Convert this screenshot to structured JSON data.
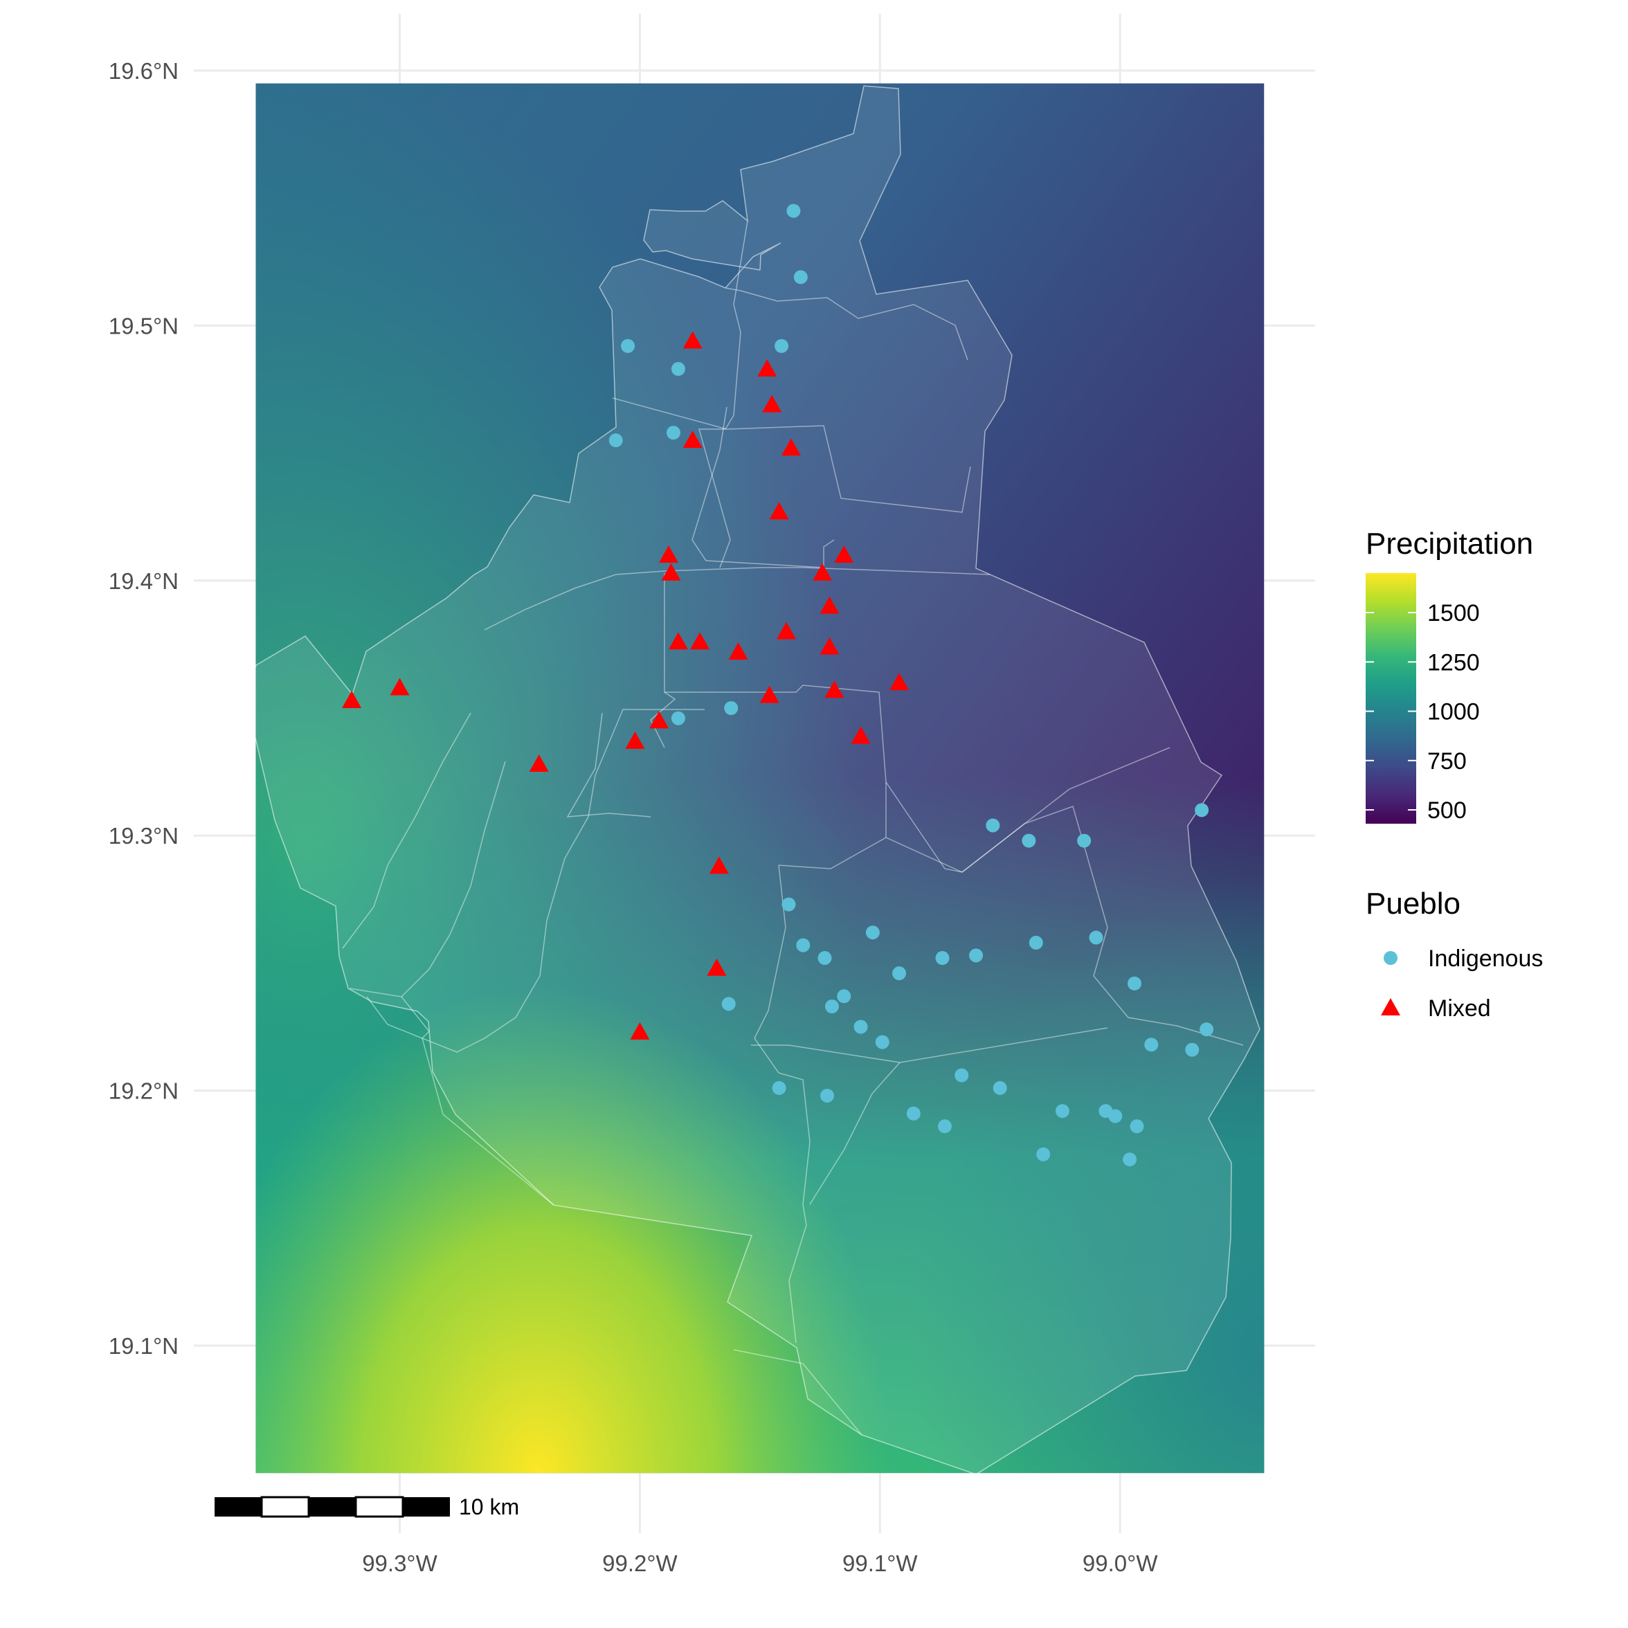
{
  "map": {
    "lat_ticks": [
      {
        "value": 19.6,
        "label": "19.6°N"
      },
      {
        "value": 19.5,
        "label": "19.5°N"
      },
      {
        "value": 19.4,
        "label": "19.4°N"
      },
      {
        "value": 19.3,
        "label": "19.3°N"
      },
      {
        "value": 19.2,
        "label": "19.2°N"
      },
      {
        "value": 19.1,
        "label": "19.1°N"
      }
    ],
    "lon_ticks": [
      {
        "value": -99.3,
        "label": "99.3°W"
      },
      {
        "value": -99.2,
        "label": "99.2°W"
      },
      {
        "value": -99.1,
        "label": "99.1°W"
      },
      {
        "value": -99.0,
        "label": "99.0°W"
      }
    ],
    "scale_bar_label": "10 km",
    "colors": {
      "indigenous": "#5bc0d8",
      "mixed": "#ff0000",
      "grid": "#ebebeb",
      "boundary": "#ffffff"
    }
  },
  "legend": {
    "precipitation": {
      "title": "Precipitation",
      "range": [
        430,
        1700
      ],
      "ticks": [
        1500,
        1250,
        1000,
        750,
        500
      ],
      "tick_labels": [
        "1500",
        "1250",
        "1000",
        "750",
        "500"
      ],
      "palette": [
        "#440154",
        "#482878",
        "#3e4989",
        "#31688e",
        "#26828e",
        "#1f9e89",
        "#35b779",
        "#6ece58",
        "#b5de2b",
        "#fde725"
      ]
    },
    "pueblo": {
      "title": "Pueblo",
      "items": [
        {
          "label": "Indigenous",
          "shape": "circle",
          "color": "#5bc0d8"
        },
        {
          "label": "Mixed",
          "shape": "triangle",
          "color": "#ff0000"
        }
      ]
    }
  },
  "chart_data": {
    "type": "scatter",
    "series": [
      {
        "name": "Indigenous",
        "points": [
          [
            -99.136,
            19.545
          ],
          [
            -99.133,
            19.519
          ],
          [
            -99.205,
            19.492
          ],
          [
            -99.141,
            19.492
          ],
          [
            -99.184,
            19.483
          ],
          [
            -99.186,
            19.458
          ],
          [
            -99.21,
            19.455
          ],
          [
            -99.184,
            19.346
          ],
          [
            -99.162,
            19.35
          ],
          [
            -99.053,
            19.304
          ],
          [
            -99.038,
            19.298
          ],
          [
            -99.015,
            19.298
          ],
          [
            -98.966,
            19.31
          ],
          [
            -99.138,
            19.273
          ],
          [
            -99.103,
            19.262
          ],
          [
            -99.132,
            19.257
          ],
          [
            -99.123,
            19.252
          ],
          [
            -99.074,
            19.252
          ],
          [
            -99.06,
            19.253
          ],
          [
            -99.035,
            19.258
          ],
          [
            -99.01,
            19.26
          ],
          [
            -99.092,
            19.246
          ],
          [
            -98.994,
            19.242
          ],
          [
            -99.115,
            19.237
          ],
          [
            -99.12,
            19.233
          ],
          [
            -99.163,
            19.234
          ],
          [
            -99.108,
            19.225
          ],
          [
            -99.099,
            19.219
          ],
          [
            -98.987,
            19.218
          ],
          [
            -98.97,
            19.216
          ],
          [
            -98.964,
            19.224
          ],
          [
            -99.066,
            19.206
          ],
          [
            -99.05,
            19.201
          ],
          [
            -99.142,
            19.201
          ],
          [
            -99.122,
            19.198
          ],
          [
            -99.024,
            19.192
          ],
          [
            -99.006,
            19.192
          ],
          [
            -99.002,
            19.19
          ],
          [
            -99.086,
            19.191
          ],
          [
            -99.073,
            19.186
          ],
          [
            -98.993,
            19.186
          ],
          [
            -99.032,
            19.175
          ],
          [
            -98.996,
            19.173
          ]
        ]
      },
      {
        "name": "Mixed",
        "points": [
          [
            -99.178,
            19.494
          ],
          [
            -99.147,
            19.483
          ],
          [
            -99.145,
            19.469
          ],
          [
            -99.178,
            19.455
          ],
          [
            -99.137,
            19.452
          ],
          [
            -99.142,
            19.427
          ],
          [
            -99.188,
            19.41
          ],
          [
            -99.115,
            19.41
          ],
          [
            -99.187,
            19.403
          ],
          [
            -99.124,
            19.403
          ],
          [
            -99.121,
            19.39
          ],
          [
            -99.139,
            19.38
          ],
          [
            -99.184,
            19.376
          ],
          [
            -99.175,
            19.376
          ],
          [
            -99.121,
            19.374
          ],
          [
            -99.159,
            19.372
          ],
          [
            -99.092,
            19.36
          ],
          [
            -99.32,
            19.353
          ],
          [
            -99.3,
            19.358
          ],
          [
            -99.119,
            19.357
          ],
          [
            -99.146,
            19.355
          ],
          [
            -99.192,
            19.345
          ],
          [
            -99.202,
            19.337
          ],
          [
            -99.108,
            19.339
          ],
          [
            -99.242,
            19.328
          ],
          [
            -99.167,
            19.288
          ],
          [
            -99.168,
            19.248
          ],
          [
            -99.2,
            19.223
          ]
        ]
      }
    ],
    "xlim": [
      -99.36,
      -98.94
    ],
    "ylim": [
      19.05,
      19.595
    ],
    "fill_variable": "Precipitation",
    "legend_position": "right"
  }
}
